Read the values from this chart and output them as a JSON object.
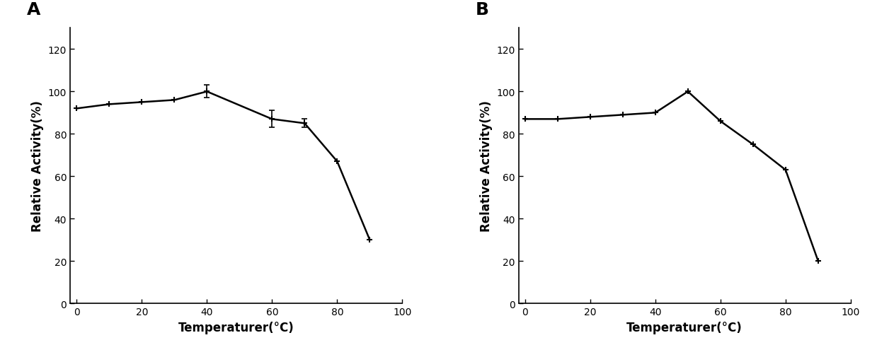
{
  "panel_A": {
    "label": "A",
    "x": [
      0,
      10,
      20,
      30,
      40,
      60,
      70,
      80,
      90
    ],
    "y": [
      92,
      94,
      95,
      96,
      100,
      87,
      85,
      67,
      30
    ],
    "yerr": [
      null,
      null,
      null,
      null,
      3.0,
      4.0,
      2.0,
      null,
      null
    ],
    "xlabel": "Temperaturer(°C)",
    "ylabel": "Relative Activity(%)",
    "xlim": [
      -2,
      100
    ],
    "ylim": [
      0,
      130
    ],
    "xticks": [
      0,
      20,
      40,
      60,
      80,
      100
    ],
    "yticks": [
      0,
      20,
      40,
      60,
      80,
      100,
      120
    ]
  },
  "panel_B": {
    "label": "B",
    "x": [
      0,
      10,
      20,
      30,
      40,
      50,
      60,
      70,
      80,
      90
    ],
    "y": [
      87,
      87,
      88,
      89,
      90,
      100,
      86,
      75,
      63,
      20
    ],
    "yerr": [
      null,
      null,
      null,
      null,
      null,
      null,
      null,
      null,
      null,
      null
    ],
    "xlabel": "Temperaturer(°C)",
    "ylabel": "Relative Activity(%)",
    "xlim": [
      -2,
      100
    ],
    "ylim": [
      0,
      130
    ],
    "xticks": [
      0,
      20,
      40,
      60,
      80,
      100
    ],
    "yticks": [
      0,
      20,
      40,
      60,
      80,
      100,
      120
    ]
  },
  "line_color": "#000000",
  "marker": "+",
  "marker_size": 6,
  "marker_linewidth": 1.5,
  "line_width": 1.8,
  "label_fontsize": 12,
  "tick_fontsize": 10,
  "panel_label_fontsize": 18,
  "background_color": "#ffffff"
}
